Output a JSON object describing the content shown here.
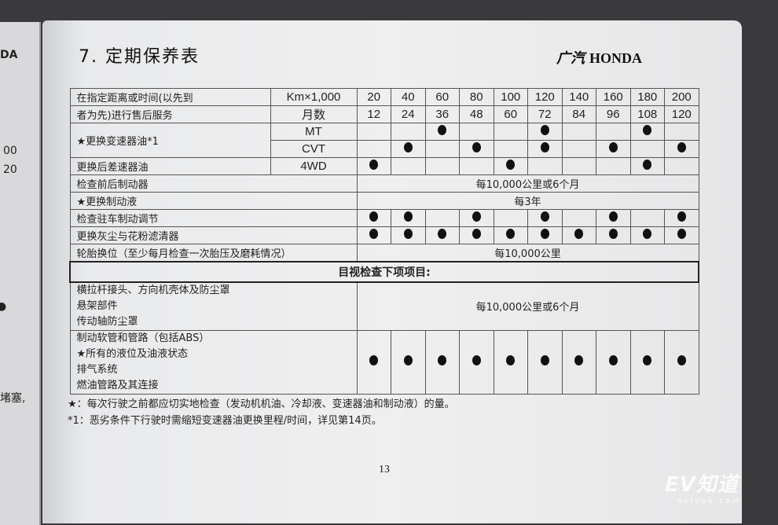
{
  "left_page": {
    "fragments": [
      "DA",
      "00",
      "20",
      "●",
      "堵塞,"
    ]
  },
  "header": {
    "title": "7. 定期保养表",
    "logo": "广汽 HONDA",
    "logo_cn": "广汽",
    "logo_en": "HONDA"
  },
  "table": {
    "corner_label_line1": "在指定距离或时间(以先到",
    "corner_label_line2": "者为先)进行售后服务",
    "km_label": "Km×1,000",
    "months_label": "月数",
    "km": [
      "20",
      "40",
      "60",
      "80",
      "100",
      "120",
      "140",
      "160",
      "180",
      "200"
    ],
    "months": [
      "12",
      "24",
      "36",
      "48",
      "60",
      "72",
      "84",
      "96",
      "108",
      "120"
    ],
    "rows": [
      {
        "label": "★更换变速器油*1",
        "sub": "MT",
        "dots": [
          2,
          5,
          8
        ]
      },
      {
        "label": "",
        "sub": "CVT",
        "dots": [
          1,
          3,
          5,
          7,
          9
        ]
      },
      {
        "label": "更换后差速器油",
        "sub": "4WD",
        "dots": [
          0,
          4,
          8
        ]
      },
      {
        "label": "检查前后制动器",
        "span": "每10,000公里或6个月"
      },
      {
        "label": "★更换制动液",
        "span": "每3年"
      },
      {
        "label": "检查驻车制动调节",
        "dots": [
          0,
          1,
          3,
          5,
          7,
          9
        ]
      },
      {
        "label": "更换灰尘与花粉滤清器",
        "dots": [
          0,
          1,
          2,
          3,
          4,
          5,
          6,
          7,
          8,
          9
        ]
      },
      {
        "label": "轮胎换位（至少每月检查一次胎压及磨耗情况）",
        "span": "每10,000公里"
      }
    ],
    "visual_header": "目视检查下项项目:",
    "visual_group1": {
      "items": [
        "横拉杆接头、方向机壳体及防尘罩",
        "悬架部件",
        "传动轴防尘罩"
      ],
      "span": "每10,000公里或6个月"
    },
    "visual_group2": {
      "items": [
        "制动软管和管路（包括ABS）",
        "★所有的液位及油液状态",
        "排气系统",
        "燃油管路及其连接"
      ],
      "dots": [
        0,
        1,
        2,
        3,
        4,
        5,
        6,
        7,
        8,
        9
      ]
    }
  },
  "notes": [
    "★：每次行驶之前都应切实地检查（发动机机油、冷却液、变速器油和制动液）的量。",
    "*1：恶劣条件下行驶时需缩短变速器油更换里程/时间，详见第14页。"
  ],
  "page_number": "13",
  "watermark": {
    "brand": "EV知道",
    "site": "evlook.com"
  }
}
